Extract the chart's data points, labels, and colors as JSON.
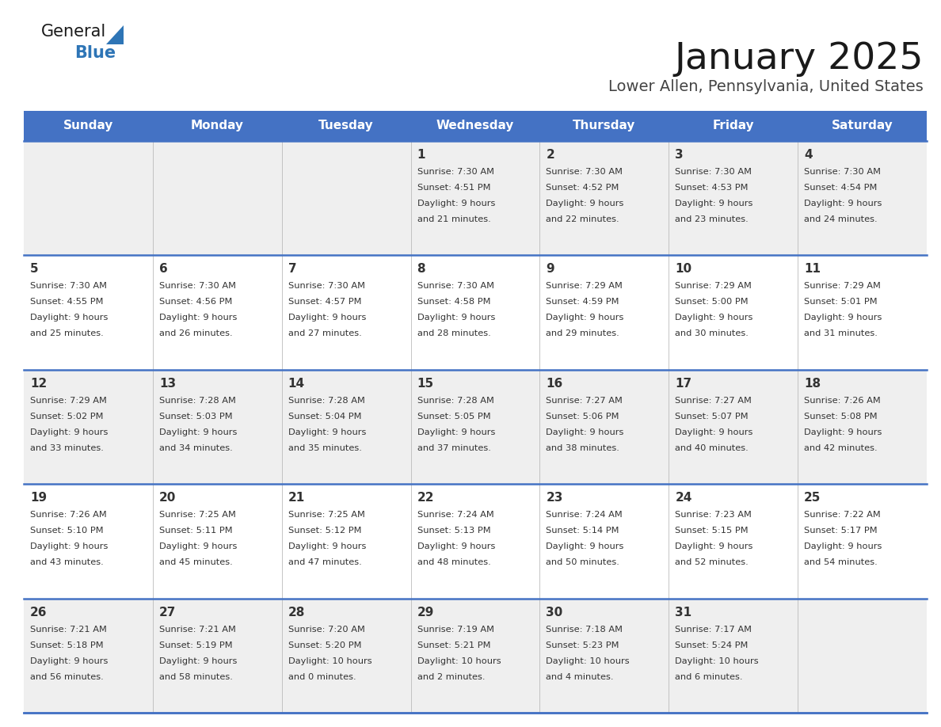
{
  "title": "January 2025",
  "subtitle": "Lower Allen, Pennsylvania, United States",
  "days_of_week": [
    "Sunday",
    "Monday",
    "Tuesday",
    "Wednesday",
    "Thursday",
    "Friday",
    "Saturday"
  ],
  "header_bg": "#4472C4",
  "header_text": "#FFFFFF",
  "row_bg_odd": "#EFEFEF",
  "row_bg_even": "#FFFFFF",
  "divider_color": "#4472C4",
  "cell_text_color": "#333333",
  "day_num_color": "#333333",
  "weeks": [
    [
      {
        "day": null,
        "sunrise": null,
        "sunset": null,
        "daylight_line1": null,
        "daylight_line2": null
      },
      {
        "day": null,
        "sunrise": null,
        "sunset": null,
        "daylight_line1": null,
        "daylight_line2": null
      },
      {
        "day": null,
        "sunrise": null,
        "sunset": null,
        "daylight_line1": null,
        "daylight_line2": null
      },
      {
        "day": 1,
        "sunrise": "7:30 AM",
        "sunset": "4:51 PM",
        "daylight_line1": "Daylight: 9 hours",
        "daylight_line2": "and 21 minutes."
      },
      {
        "day": 2,
        "sunrise": "7:30 AM",
        "sunset": "4:52 PM",
        "daylight_line1": "Daylight: 9 hours",
        "daylight_line2": "and 22 minutes."
      },
      {
        "day": 3,
        "sunrise": "7:30 AM",
        "sunset": "4:53 PM",
        "daylight_line1": "Daylight: 9 hours",
        "daylight_line2": "and 23 minutes."
      },
      {
        "day": 4,
        "sunrise": "7:30 AM",
        "sunset": "4:54 PM",
        "daylight_line1": "Daylight: 9 hours",
        "daylight_line2": "and 24 minutes."
      }
    ],
    [
      {
        "day": 5,
        "sunrise": "7:30 AM",
        "sunset": "4:55 PM",
        "daylight_line1": "Daylight: 9 hours",
        "daylight_line2": "and 25 minutes."
      },
      {
        "day": 6,
        "sunrise": "7:30 AM",
        "sunset": "4:56 PM",
        "daylight_line1": "Daylight: 9 hours",
        "daylight_line2": "and 26 minutes."
      },
      {
        "day": 7,
        "sunrise": "7:30 AM",
        "sunset": "4:57 PM",
        "daylight_line1": "Daylight: 9 hours",
        "daylight_line2": "and 27 minutes."
      },
      {
        "day": 8,
        "sunrise": "7:30 AM",
        "sunset": "4:58 PM",
        "daylight_line1": "Daylight: 9 hours",
        "daylight_line2": "and 28 minutes."
      },
      {
        "day": 9,
        "sunrise": "7:29 AM",
        "sunset": "4:59 PM",
        "daylight_line1": "Daylight: 9 hours",
        "daylight_line2": "and 29 minutes."
      },
      {
        "day": 10,
        "sunrise": "7:29 AM",
        "sunset": "5:00 PM",
        "daylight_line1": "Daylight: 9 hours",
        "daylight_line2": "and 30 minutes."
      },
      {
        "day": 11,
        "sunrise": "7:29 AM",
        "sunset": "5:01 PM",
        "daylight_line1": "Daylight: 9 hours",
        "daylight_line2": "and 31 minutes."
      }
    ],
    [
      {
        "day": 12,
        "sunrise": "7:29 AM",
        "sunset": "5:02 PM",
        "daylight_line1": "Daylight: 9 hours",
        "daylight_line2": "and 33 minutes."
      },
      {
        "day": 13,
        "sunrise": "7:28 AM",
        "sunset": "5:03 PM",
        "daylight_line1": "Daylight: 9 hours",
        "daylight_line2": "and 34 minutes."
      },
      {
        "day": 14,
        "sunrise": "7:28 AM",
        "sunset": "5:04 PM",
        "daylight_line1": "Daylight: 9 hours",
        "daylight_line2": "and 35 minutes."
      },
      {
        "day": 15,
        "sunrise": "7:28 AM",
        "sunset": "5:05 PM",
        "daylight_line1": "Daylight: 9 hours",
        "daylight_line2": "and 37 minutes."
      },
      {
        "day": 16,
        "sunrise": "7:27 AM",
        "sunset": "5:06 PM",
        "daylight_line1": "Daylight: 9 hours",
        "daylight_line2": "and 38 minutes."
      },
      {
        "day": 17,
        "sunrise": "7:27 AM",
        "sunset": "5:07 PM",
        "daylight_line1": "Daylight: 9 hours",
        "daylight_line2": "and 40 minutes."
      },
      {
        "day": 18,
        "sunrise": "7:26 AM",
        "sunset": "5:08 PM",
        "daylight_line1": "Daylight: 9 hours",
        "daylight_line2": "and 42 minutes."
      }
    ],
    [
      {
        "day": 19,
        "sunrise": "7:26 AM",
        "sunset": "5:10 PM",
        "daylight_line1": "Daylight: 9 hours",
        "daylight_line2": "and 43 minutes."
      },
      {
        "day": 20,
        "sunrise": "7:25 AM",
        "sunset": "5:11 PM",
        "daylight_line1": "Daylight: 9 hours",
        "daylight_line2": "and 45 minutes."
      },
      {
        "day": 21,
        "sunrise": "7:25 AM",
        "sunset": "5:12 PM",
        "daylight_line1": "Daylight: 9 hours",
        "daylight_line2": "and 47 minutes."
      },
      {
        "day": 22,
        "sunrise": "7:24 AM",
        "sunset": "5:13 PM",
        "daylight_line1": "Daylight: 9 hours",
        "daylight_line2": "and 48 minutes."
      },
      {
        "day": 23,
        "sunrise": "7:24 AM",
        "sunset": "5:14 PM",
        "daylight_line1": "Daylight: 9 hours",
        "daylight_line2": "and 50 minutes."
      },
      {
        "day": 24,
        "sunrise": "7:23 AM",
        "sunset": "5:15 PM",
        "daylight_line1": "Daylight: 9 hours",
        "daylight_line2": "and 52 minutes."
      },
      {
        "day": 25,
        "sunrise": "7:22 AM",
        "sunset": "5:17 PM",
        "daylight_line1": "Daylight: 9 hours",
        "daylight_line2": "and 54 minutes."
      }
    ],
    [
      {
        "day": 26,
        "sunrise": "7:21 AM",
        "sunset": "5:18 PM",
        "daylight_line1": "Daylight: 9 hours",
        "daylight_line2": "and 56 minutes."
      },
      {
        "day": 27,
        "sunrise": "7:21 AM",
        "sunset": "5:19 PM",
        "daylight_line1": "Daylight: 9 hours",
        "daylight_line2": "and 58 minutes."
      },
      {
        "day": 28,
        "sunrise": "7:20 AM",
        "sunset": "5:20 PM",
        "daylight_line1": "Daylight: 10 hours",
        "daylight_line2": "and 0 minutes."
      },
      {
        "day": 29,
        "sunrise": "7:19 AM",
        "sunset": "5:21 PM",
        "daylight_line1": "Daylight: 10 hours",
        "daylight_line2": "and 2 minutes."
      },
      {
        "day": 30,
        "sunrise": "7:18 AM",
        "sunset": "5:23 PM",
        "daylight_line1": "Daylight: 10 hours",
        "daylight_line2": "and 4 minutes."
      },
      {
        "day": 31,
        "sunrise": "7:17 AM",
        "sunset": "5:24 PM",
        "daylight_line1": "Daylight: 10 hours",
        "daylight_line2": "and 6 minutes."
      },
      {
        "day": null,
        "sunrise": null,
        "sunset": null,
        "daylight_line1": null,
        "daylight_line2": null
      }
    ]
  ],
  "logo_color_general": "#1a1a1a",
  "logo_color_blue": "#2E75B6",
  "logo_triangle_color": "#2E75B6",
  "title_color": "#1a1a1a",
  "subtitle_color": "#444444"
}
